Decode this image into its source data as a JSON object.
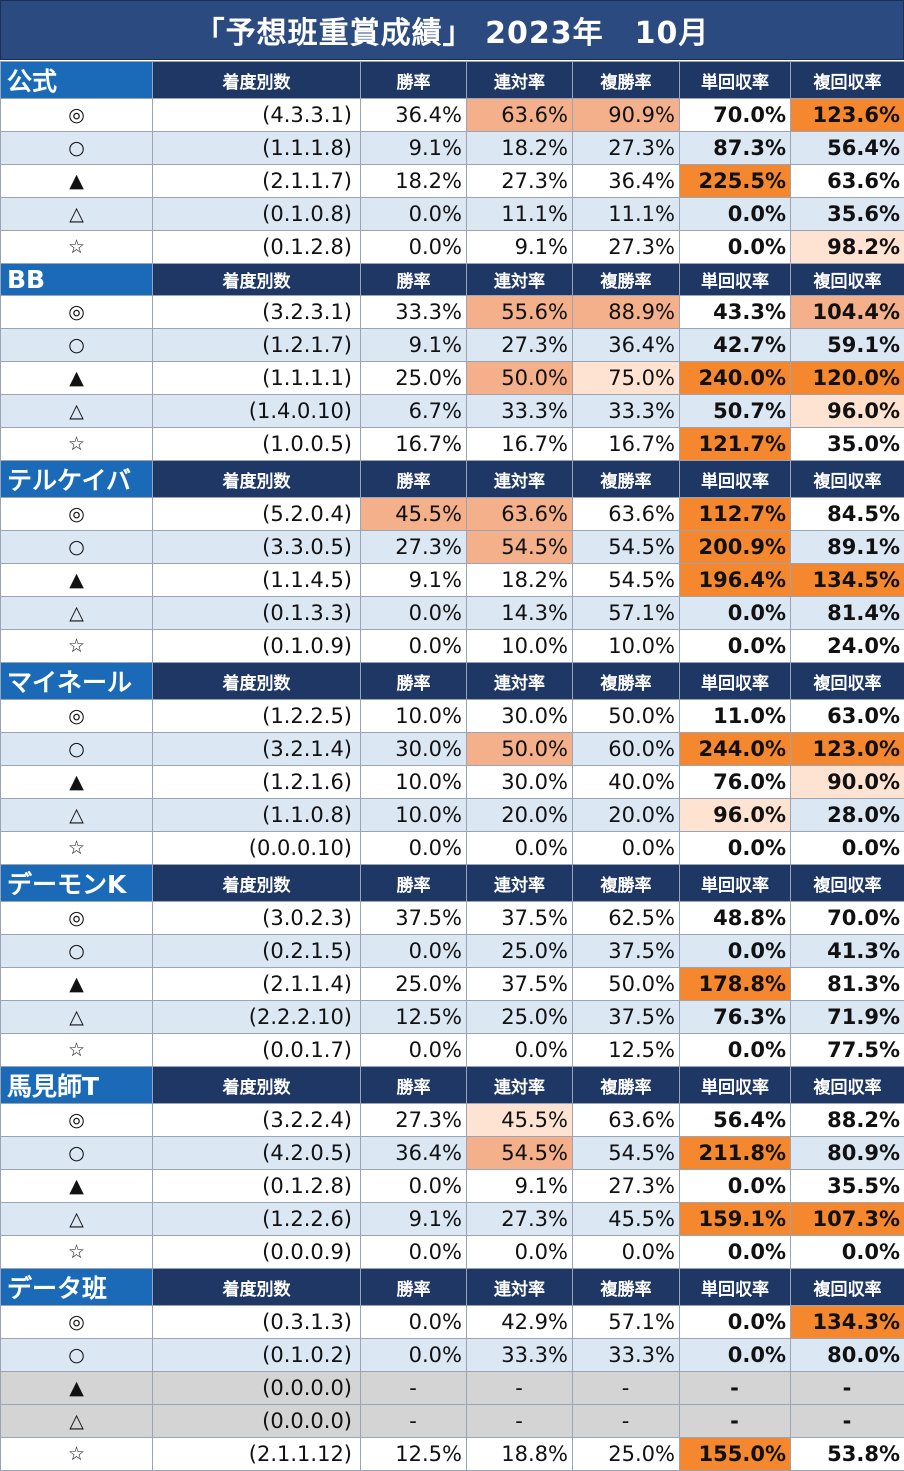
{
  "title": "「予想班重賞成績」 2023年　10月",
  "columns": [
    "着度別数",
    "勝率",
    "連対率",
    "複勝率",
    "単回収率",
    "複回収率"
  ],
  "groups": [
    {
      "name": "公式",
      "rows": [
        {
          "mark": "◎",
          "record": "(4.3.3.1)",
          "win": "36.4%",
          "place2": "63.6%",
          "place3": "90.9%",
          "win_ret": "70.0%",
          "place_ret": "123.6%"
        },
        {
          "mark": "○",
          "record": "(1.1.1.8)",
          "win": "9.1%",
          "place2": "18.2%",
          "place3": "27.3%",
          "win_ret": "87.3%",
          "place_ret": "56.4%"
        },
        {
          "mark": "▲",
          "record": "(2.1.1.7)",
          "win": "18.2%",
          "place2": "27.3%",
          "place3": "36.4%",
          "win_ret": "225.5%",
          "place_ret": "63.6%"
        },
        {
          "mark": "△",
          "record": "(0.1.0.8)",
          "win": "0.0%",
          "place2": "11.1%",
          "place3": "11.1%",
          "win_ret": "0.0%",
          "place_ret": "35.6%"
        },
        {
          "mark": "☆",
          "record": "(0.1.2.8)",
          "win": "0.0%",
          "place2": "9.1%",
          "place3": "27.3%",
          "win_ret": "0.0%",
          "place_ret": "98.2%"
        }
      ]
    },
    {
      "name": "BB",
      "rows": [
        {
          "mark": "◎",
          "record": "(3.2.3.1)",
          "win": "33.3%",
          "place2": "55.6%",
          "place3": "88.9%",
          "win_ret": "43.3%",
          "place_ret": "104.4%"
        },
        {
          "mark": "○",
          "record": "(1.2.1.7)",
          "win": "9.1%",
          "place2": "27.3%",
          "place3": "36.4%",
          "win_ret": "42.7%",
          "place_ret": "59.1%"
        },
        {
          "mark": "▲",
          "record": "(1.1.1.1)",
          "win": "25.0%",
          "place2": "50.0%",
          "place3": "75.0%",
          "win_ret": "240.0%",
          "place_ret": "120.0%"
        },
        {
          "mark": "△",
          "record": "(1.4.0.10)",
          "win": "6.7%",
          "place2": "33.3%",
          "place3": "33.3%",
          "win_ret": "50.7%",
          "place_ret": "96.0%"
        },
        {
          "mark": "☆",
          "record": "(1.0.0.5)",
          "win": "16.7%",
          "place2": "16.7%",
          "place3": "16.7%",
          "win_ret": "121.7%",
          "place_ret": "35.0%"
        }
      ]
    },
    {
      "name": "テルケイバ",
      "rows": [
        {
          "mark": "◎",
          "record": "(5.2.0.4)",
          "win": "45.5%",
          "place2": "63.6%",
          "place3": "63.6%",
          "win_ret": "112.7%",
          "place_ret": "84.5%"
        },
        {
          "mark": "○",
          "record": "(3.3.0.5)",
          "win": "27.3%",
          "place2": "54.5%",
          "place3": "54.5%",
          "win_ret": "200.9%",
          "place_ret": "89.1%"
        },
        {
          "mark": "▲",
          "record": "(1.1.4.5)",
          "win": "9.1%",
          "place2": "18.2%",
          "place3": "54.5%",
          "win_ret": "196.4%",
          "place_ret": "134.5%"
        },
        {
          "mark": "△",
          "record": "(0.1.3.3)",
          "win": "0.0%",
          "place2": "14.3%",
          "place3": "57.1%",
          "win_ret": "0.0%",
          "place_ret": "81.4%"
        },
        {
          "mark": "☆",
          "record": "(0.1.0.9)",
          "win": "0.0%",
          "place2": "10.0%",
          "place3": "10.0%",
          "win_ret": "0.0%",
          "place_ret": "24.0%"
        }
      ]
    },
    {
      "name": "マイネール",
      "rows": [
        {
          "mark": "◎",
          "record": "(1.2.2.5)",
          "win": "10.0%",
          "place2": "30.0%",
          "place3": "50.0%",
          "win_ret": "11.0%",
          "place_ret": "63.0%"
        },
        {
          "mark": "○",
          "record": "(3.2.1.4)",
          "win": "30.0%",
          "place2": "50.0%",
          "place3": "60.0%",
          "win_ret": "244.0%",
          "place_ret": "123.0%"
        },
        {
          "mark": "▲",
          "record": "(1.2.1.6)",
          "win": "10.0%",
          "place2": "30.0%",
          "place3": "40.0%",
          "win_ret": "76.0%",
          "place_ret": "90.0%"
        },
        {
          "mark": "△",
          "record": "(1.1.0.8)",
          "win": "10.0%",
          "place2": "20.0%",
          "place3": "20.0%",
          "win_ret": "96.0%",
          "place_ret": "28.0%"
        },
        {
          "mark": "☆",
          "record": "(0.0.0.10)",
          "win": "0.0%",
          "place2": "0.0%",
          "place3": "0.0%",
          "win_ret": "0.0%",
          "place_ret": "0.0%"
        }
      ]
    },
    {
      "name": "デーモンK",
      "rows": [
        {
          "mark": "◎",
          "record": "(3.0.2.3)",
          "win": "37.5%",
          "place2": "37.5%",
          "place3": "62.5%",
          "win_ret": "48.8%",
          "place_ret": "70.0%"
        },
        {
          "mark": "○",
          "record": "(0.2.1.5)",
          "win": "0.0%",
          "place2": "25.0%",
          "place3": "37.5%",
          "win_ret": "0.0%",
          "place_ret": "41.3%"
        },
        {
          "mark": "▲",
          "record": "(2.1.1.4)",
          "win": "25.0%",
          "place2": "37.5%",
          "place3": "50.0%",
          "win_ret": "178.8%",
          "place_ret": "81.3%"
        },
        {
          "mark": "△",
          "record": "(2.2.2.10)",
          "win": "12.5%",
          "place2": "25.0%",
          "place3": "37.5%",
          "win_ret": "76.3%",
          "place_ret": "71.9%"
        },
        {
          "mark": "☆",
          "record": "(0.0.1.7)",
          "win": "0.0%",
          "place2": "0.0%",
          "place3": "12.5%",
          "win_ret": "0.0%",
          "place_ret": "77.5%"
        }
      ]
    },
    {
      "name": "馬見師T",
      "rows": [
        {
          "mark": "◎",
          "record": "(3.2.2.4)",
          "win": "27.3%",
          "place2": "45.5%",
          "place3": "63.6%",
          "win_ret": "56.4%",
          "place_ret": "88.2%"
        },
        {
          "mark": "○",
          "record": "(4.2.0.5)",
          "win": "36.4%",
          "place2": "54.5%",
          "place3": "54.5%",
          "win_ret": "211.8%",
          "place_ret": "80.9%"
        },
        {
          "mark": "▲",
          "record": "(0.1.2.8)",
          "win": "0.0%",
          "place2": "9.1%",
          "place3": "27.3%",
          "win_ret": "0.0%",
          "place_ret": "35.5%"
        },
        {
          "mark": "△",
          "record": "(1.2.2.6)",
          "win": "9.1%",
          "place2": "27.3%",
          "place3": "45.5%",
          "win_ret": "159.1%",
          "place_ret": "107.3%"
        },
        {
          "mark": "☆",
          "record": "(0.0.0.9)",
          "win": "0.0%",
          "place2": "0.0%",
          "place3": "0.0%",
          "win_ret": "0.0%",
          "place_ret": "0.0%"
        }
      ]
    },
    {
      "name": "データ班",
      "rows": [
        {
          "mark": "◎",
          "record": "(0.3.1.3)",
          "win": "0.0%",
          "place2": "42.9%",
          "place3": "57.1%",
          "win_ret": "0.0%",
          "place_ret": "134.3%"
        },
        {
          "mark": "○",
          "record": "(0.1.0.2)",
          "win": "0.0%",
          "place2": "33.3%",
          "place3": "33.3%",
          "win_ret": "0.0%",
          "place_ret": "80.0%"
        },
        {
          "mark": "▲",
          "record": "(0.0.0.0)",
          "win": "-",
          "place2": "-",
          "place3": "-",
          "win_ret": "-",
          "place_ret": "-"
        },
        {
          "mark": "△",
          "record": "(0.0.0.0)",
          "win": "-",
          "place2": "-",
          "place3": "-",
          "win_ret": "-",
          "place_ret": "-"
        },
        {
          "mark": "☆",
          "record": "(2.1.1.12)",
          "win": "12.5%",
          "place2": "18.8%",
          "place3": "25.0%",
          "win_ret": "155.0%",
          "place_ret": "53.8%"
        }
      ]
    }
  ],
  "highlight_colors": {
    "strong": "#f5882e",
    "medium": "#f3b08a",
    "light": "#ffe3d2"
  },
  "highlights": [
    [
      "0.0.place2",
      "medium"
    ],
    [
      "0.0.place3",
      "medium"
    ],
    [
      "0.0.place_ret",
      "strong"
    ],
    [
      "0.2.win_ret",
      "strong"
    ],
    [
      "0.4.place_ret",
      "light"
    ],
    [
      "1.0.place2",
      "medium"
    ],
    [
      "1.0.place3",
      "medium"
    ],
    [
      "1.0.place_ret",
      "medium"
    ],
    [
      "1.2.place2",
      "medium"
    ],
    [
      "1.2.place3",
      "light"
    ],
    [
      "1.2.win_ret",
      "strong"
    ],
    [
      "1.2.place_ret",
      "strong"
    ],
    [
      "1.3.place_ret",
      "light"
    ],
    [
      "1.4.win_ret",
      "strong"
    ],
    [
      "2.0.win",
      "medium"
    ],
    [
      "2.0.place2",
      "medium"
    ],
    [
      "2.0.win_ret",
      "strong"
    ],
    [
      "2.1.place2",
      "medium"
    ],
    [
      "2.1.win_ret",
      "strong"
    ],
    [
      "2.2.win_ret",
      "strong"
    ],
    [
      "2.2.place_ret",
      "strong"
    ],
    [
      "3.1.place2",
      "medium"
    ],
    [
      "3.1.win_ret",
      "strong"
    ],
    [
      "3.1.place_ret",
      "strong"
    ],
    [
      "3.2.place_ret",
      "light"
    ],
    [
      "3.3.win_ret",
      "light"
    ],
    [
      "4.2.win_ret",
      "strong"
    ],
    [
      "5.0.place2",
      "light"
    ],
    [
      "5.1.place2",
      "medium"
    ],
    [
      "5.1.win_ret",
      "strong"
    ],
    [
      "5.3.win_ret",
      "strong"
    ],
    [
      "5.3.place_ret",
      "strong"
    ],
    [
      "6.0.place_ret",
      "strong"
    ],
    [
      "6.4.win_ret",
      "strong"
    ]
  ],
  "gray_rows": [
    "6.2",
    "6.3"
  ]
}
